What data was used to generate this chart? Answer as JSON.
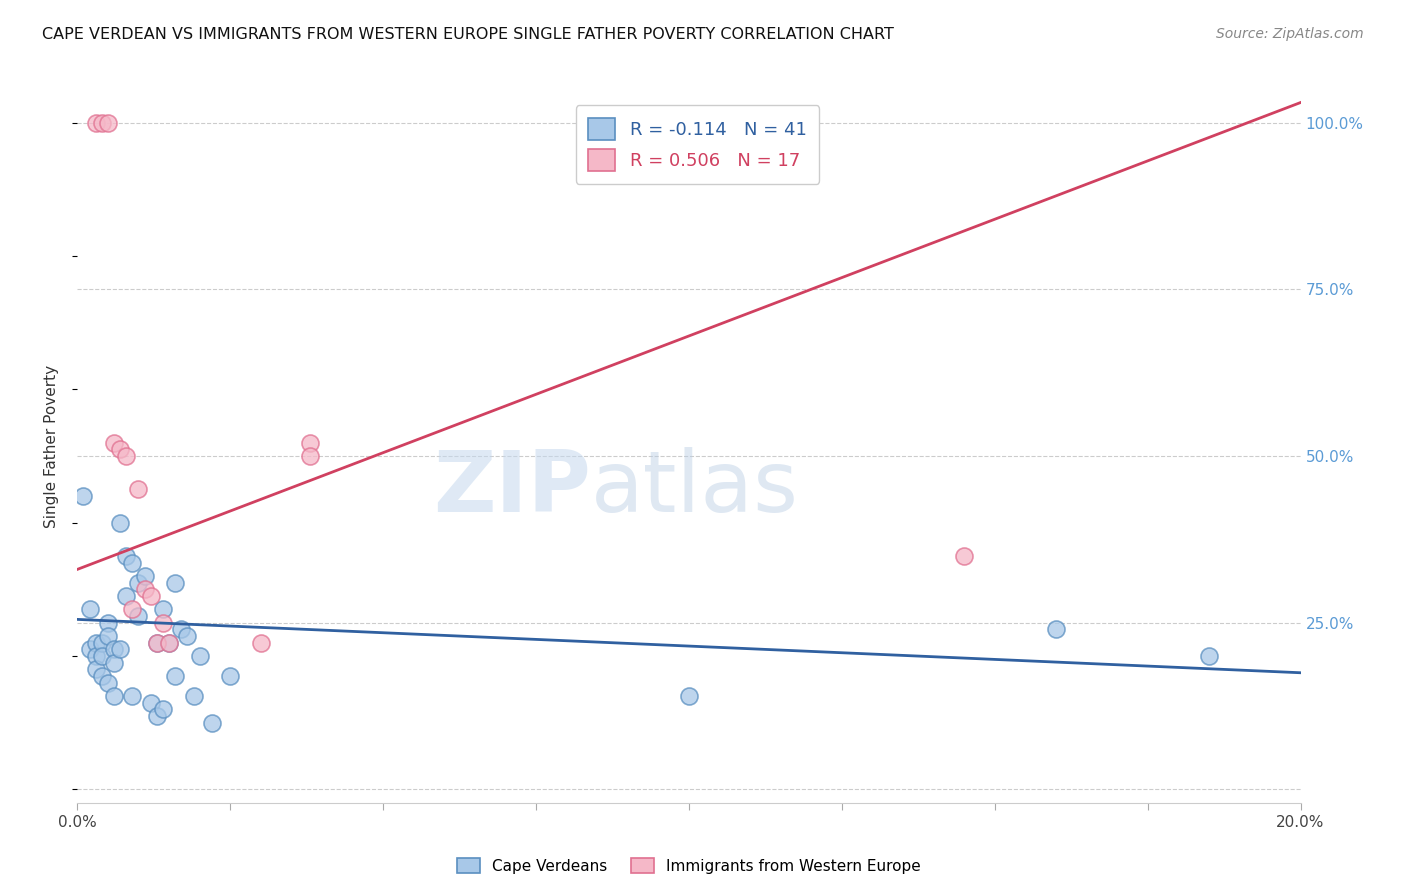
{
  "title": "CAPE VERDEAN VS IMMIGRANTS FROM WESTERN EUROPE SINGLE FATHER POVERTY CORRELATION CHART",
  "source": "Source: ZipAtlas.com",
  "ylabel": "Single Father Poverty",
  "blue_R": -0.114,
  "blue_N": 41,
  "pink_R": 0.506,
  "pink_N": 17,
  "blue_label": "Cape Verdeans",
  "pink_label": "Immigrants from Western Europe",
  "blue_face": "#a8c8e8",
  "blue_edge": "#5a8fc0",
  "pink_face": "#f5b8c8",
  "pink_edge": "#e07090",
  "blue_line": "#3060a0",
  "pink_line": "#d04060",
  "watermark_zip": "ZIP",
  "watermark_atlas": "atlas",
  "xlim": [
    0.0,
    0.2
  ],
  "ylim": [
    -0.02,
    1.05
  ],
  "right_yticks": [
    0.0,
    0.25,
    0.5,
    0.75,
    1.0
  ],
  "blue_scatter_x": [
    0.001,
    0.002,
    0.002,
    0.003,
    0.003,
    0.003,
    0.004,
    0.004,
    0.004,
    0.005,
    0.005,
    0.005,
    0.006,
    0.006,
    0.006,
    0.007,
    0.007,
    0.008,
    0.008,
    0.009,
    0.009,
    0.01,
    0.01,
    0.011,
    0.012,
    0.013,
    0.013,
    0.014,
    0.014,
    0.015,
    0.016,
    0.016,
    0.017,
    0.018,
    0.019,
    0.02,
    0.022,
    0.025,
    0.1,
    0.16,
    0.185
  ],
  "blue_scatter_y": [
    0.44,
    0.27,
    0.21,
    0.22,
    0.2,
    0.18,
    0.22,
    0.2,
    0.17,
    0.25,
    0.23,
    0.16,
    0.21,
    0.19,
    0.14,
    0.4,
    0.21,
    0.35,
    0.29,
    0.34,
    0.14,
    0.31,
    0.26,
    0.32,
    0.13,
    0.22,
    0.11,
    0.27,
    0.12,
    0.22,
    0.31,
    0.17,
    0.24,
    0.23,
    0.14,
    0.2,
    0.1,
    0.17,
    0.14,
    0.24,
    0.2
  ],
  "pink_scatter_x": [
    0.003,
    0.004,
    0.005,
    0.006,
    0.007,
    0.008,
    0.009,
    0.01,
    0.011,
    0.012,
    0.013,
    0.014,
    0.015,
    0.03,
    0.038,
    0.038,
    0.145
  ],
  "pink_scatter_y": [
    1.0,
    1.0,
    1.0,
    0.52,
    0.51,
    0.5,
    0.27,
    0.45,
    0.3,
    0.29,
    0.22,
    0.25,
    0.22,
    0.22,
    0.52,
    0.5,
    0.35
  ],
  "pink_line_x0": 0.0,
  "pink_line_y0": 0.33,
  "pink_line_x1": 0.2,
  "pink_line_y1": 1.03,
  "blue_line_x0": 0.0,
  "blue_line_y0": 0.255,
  "blue_line_x1": 0.2,
  "blue_line_y1": 0.175
}
